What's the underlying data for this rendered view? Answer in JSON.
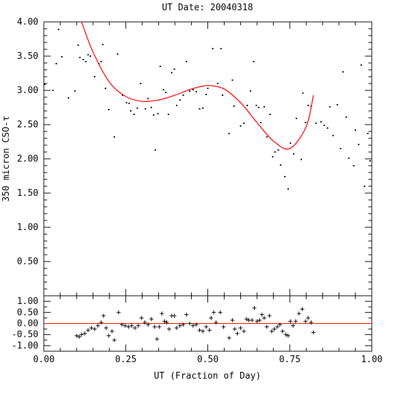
{
  "chart_data": [
    {
      "type": "scatter",
      "title": "UT Date: 20040318",
      "xlabel": "",
      "ylabel": "350 micron CSO-τ",
      "xlim": [
        0,
        1
      ],
      "ylim": [
        0,
        4
      ],
      "x_ticks": [
        0,
        0.25,
        0.5,
        0.75,
        1
      ],
      "y_ticks": [
        0.5,
        1,
        1.5,
        2,
        2.5,
        3,
        3.5,
        4
      ],
      "y_tick_labels": [
        "0.50",
        "1.00",
        "1.50",
        "2.00",
        "2.50",
        "3.00",
        "3.50",
        "4.00"
      ],
      "grid": false,
      "series": [
        {
          "color": "#000000",
          "marker": "dot",
          "points": [
            [
              0.003,
              3.09
            ],
            [
              0.028,
              3.0
            ],
            [
              0.038,
              3.39
            ],
            [
              0.045,
              3.89
            ],
            [
              0.055,
              3.49
            ],
            [
              0.075,
              2.89
            ],
            [
              0.095,
              2.99
            ],
            [
              0.105,
              3.66
            ],
            [
              0.11,
              3.48
            ],
            [
              0.12,
              3.45
            ],
            [
              0.128,
              3.42
            ],
            [
              0.135,
              3.52
            ],
            [
              0.142,
              3.5
            ],
            [
              0.155,
              3.2
            ],
            [
              0.168,
              3.39
            ],
            [
              0.175,
              3.42
            ],
            [
              0.18,
              3.67
            ],
            [
              0.188,
              3.03
            ],
            [
              0.198,
              2.72
            ],
            [
              0.215,
              2.32
            ],
            [
              0.225,
              3.53
            ],
            [
              0.24,
              2.93
            ],
            [
              0.252,
              2.82
            ],
            [
              0.26,
              2.81
            ],
            [
              0.265,
              2.7
            ],
            [
              0.275,
              2.65
            ],
            [
              0.285,
              2.74
            ],
            [
              0.295,
              3.1
            ],
            [
              0.31,
              2.73
            ],
            [
              0.318,
              2.88
            ],
            [
              0.328,
              2.75
            ],
            [
              0.335,
              2.64
            ],
            [
              0.34,
              2.13
            ],
            [
              0.348,
              2.66
            ],
            [
              0.355,
              3.35
            ],
            [
              0.365,
              3.01
            ],
            [
              0.372,
              2.97
            ],
            [
              0.38,
              2.65
            ],
            [
              0.39,
              3.26
            ],
            [
              0.398,
              3.31
            ],
            [
              0.405,
              2.78
            ],
            [
              0.415,
              2.86
            ],
            [
              0.425,
              2.93
            ],
            [
              0.435,
              3.42
            ],
            [
              0.445,
              2.99
            ],
            [
              0.455,
              3.01
            ],
            [
              0.465,
              2.98
            ],
            [
              0.475,
              2.73
            ],
            [
              0.485,
              2.74
            ],
            [
              0.495,
              2.94
            ],
            [
              0.5,
              3.03
            ],
            [
              0.515,
              3.61
            ],
            [
              0.53,
              3.1
            ],
            [
              0.54,
              3.61
            ],
            [
              0.545,
              2.93
            ],
            [
              0.565,
              2.37
            ],
            [
              0.575,
              3.15
            ],
            [
              0.58,
              2.77
            ],
            [
              0.6,
              2.48
            ],
            [
              0.61,
              2.52
            ],
            [
              0.62,
              2.78
            ],
            [
              0.63,
              2.99
            ],
            [
              0.64,
              3.42
            ],
            [
              0.648,
              2.78
            ],
            [
              0.655,
              2.75
            ],
            [
              0.662,
              2.53
            ],
            [
              0.672,
              2.76
            ],
            [
              0.68,
              2.32
            ],
            [
              0.69,
              2.65
            ],
            [
              0.698,
              2.03
            ],
            [
              0.705,
              2.1
            ],
            [
              0.715,
              2.13
            ],
            [
              0.722,
              1.91
            ],
            [
              0.735,
              1.74
            ],
            [
              0.745,
              1.56
            ],
            [
              0.752,
              2.23
            ],
            [
              0.762,
              2.07
            ],
            [
              0.77,
              2.59
            ],
            [
              0.785,
              1.99
            ],
            [
              0.79,
              2.96
            ],
            [
              0.798,
              2.53
            ],
            [
              0.806,
              2.78
            ],
            [
              0.815,
              2.77
            ],
            [
              0.83,
              2.52
            ],
            [
              0.845,
              2.54
            ],
            [
              0.855,
              2.49
            ],
            [
              0.865,
              2.45
            ],
            [
              0.872,
              2.76
            ],
            [
              0.882,
              2.34
            ],
            [
              0.895,
              2.79
            ],
            [
              0.905,
              2.15
            ],
            [
              0.912,
              3.27
            ],
            [
              0.922,
              2.61
            ],
            [
              0.93,
              2.01
            ],
            [
              0.945,
              1.9
            ],
            [
              0.95,
              2.42
            ],
            [
              0.96,
              2.21
            ],
            [
              0.968,
              3.37
            ],
            [
              0.978,
              1.6
            ],
            [
              0.988,
              2.37
            ],
            [
              0.995,
              1.97
            ]
          ]
        },
        {
          "color": "#ff0000",
          "marker": "none",
          "fit_x_range": [
            0.115,
            0.822
          ],
          "fit_points": [
            [
              0.115,
              4.0
            ],
            [
              0.15,
              3.56
            ],
            [
              0.2,
              3.12
            ],
            [
              0.25,
              2.91
            ],
            [
              0.3,
              2.84
            ],
            [
              0.35,
              2.86
            ],
            [
              0.4,
              2.93
            ],
            [
              0.45,
              3.02
            ],
            [
              0.5,
              3.07
            ],
            [
              0.55,
              3.02
            ],
            [
              0.6,
              2.82
            ],
            [
              0.65,
              2.53
            ],
            [
              0.7,
              2.26
            ],
            [
              0.75,
              2.15
            ],
            [
              0.8,
              2.47
            ],
            [
              0.822,
              2.93
            ]
          ]
        }
      ]
    },
    {
      "type": "scatter",
      "title": "",
      "xlabel": "UT (Fraction of Day)",
      "ylabel": "",
      "xlim": [
        0,
        1
      ],
      "ylim": [
        -1.25,
        1.25
      ],
      "x_ticks": [
        0,
        0.25,
        0.5,
        0.75,
        1
      ],
      "x_tick_labels": [
        "0.00",
        "0.25",
        "0.50",
        "0.75",
        "1.00"
      ],
      "y_ticks": [
        -1,
        -0.5,
        0,
        0.5,
        1
      ],
      "y_tick_labels": [
        "-1.00",
        "-0.50",
        "0.00",
        "0.50",
        "1.00"
      ],
      "grid": false,
      "zero_line_color": "#ff0000",
      "series": [
        {
          "color": "#000000",
          "marker": "plus",
          "points": [
            [
              0.1,
              -0.55
            ],
            [
              0.108,
              -0.6
            ],
            [
              0.115,
              -0.5
            ],
            [
              0.125,
              -0.45
            ],
            [
              0.135,
              -0.3
            ],
            [
              0.145,
              -0.2
            ],
            [
              0.155,
              -0.25
            ],
            [
              0.165,
              -0.1
            ],
            [
              0.175,
              0.05
            ],
            [
              0.182,
              0.35
            ],
            [
              0.19,
              -0.2
            ],
            [
              0.198,
              -0.55
            ],
            [
              0.208,
              -0.35
            ],
            [
              0.215,
              -0.75
            ],
            [
              0.228,
              0.5
            ],
            [
              0.238,
              -0.05
            ],
            [
              0.248,
              -0.1
            ],
            [
              0.258,
              -0.15
            ],
            [
              0.268,
              -0.1
            ],
            [
              0.278,
              -0.2
            ],
            [
              0.288,
              -0.1
            ],
            [
              0.298,
              0.25
            ],
            [
              0.308,
              0.05
            ],
            [
              0.318,
              -0.05
            ],
            [
              0.328,
              0.2
            ],
            [
              0.338,
              -0.15
            ],
            [
              0.345,
              -0.7
            ],
            [
              0.352,
              -0.15
            ],
            [
              0.36,
              0.45
            ],
            [
              0.368,
              0.1
            ],
            [
              0.375,
              0.05
            ],
            [
              0.382,
              -0.25
            ],
            [
              0.39,
              0.35
            ],
            [
              0.398,
              0.35
            ],
            [
              0.405,
              -0.2
            ],
            [
              0.415,
              -0.1
            ],
            [
              0.425,
              -0.05
            ],
            [
              0.435,
              0.4
            ],
            [
              0.445,
              0.0
            ],
            [
              0.455,
              -0.1
            ],
            [
              0.465,
              -0.05
            ],
            [
              0.475,
              -0.3
            ],
            [
              0.485,
              -0.35
            ],
            [
              0.495,
              -0.15
            ],
            [
              0.505,
              -0.3
            ],
            [
              0.51,
              0.25
            ],
            [
              0.518,
              0.5
            ],
            [
              0.525,
              0.05
            ],
            [
              0.538,
              0.5
            ],
            [
              0.548,
              -0.15
            ],
            [
              0.565,
              -0.65
            ],
            [
              0.575,
              0.15
            ],
            [
              0.582,
              -0.25
            ],
            [
              0.59,
              -0.45
            ],
            [
              0.6,
              -0.2
            ],
            [
              0.61,
              -0.35
            ],
            [
              0.618,
              0.2
            ],
            [
              0.625,
              0.15
            ],
            [
              0.635,
              0.15
            ],
            [
              0.642,
              0.7
            ],
            [
              0.65,
              0.1
            ],
            [
              0.658,
              0.15
            ],
            [
              0.665,
              0.4
            ],
            [
              0.672,
              0.25
            ],
            [
              0.68,
              -0.15
            ],
            [
              0.688,
              0.35
            ],
            [
              0.695,
              -0.35
            ],
            [
              0.703,
              -0.25
            ],
            [
              0.712,
              -0.15
            ],
            [
              0.72,
              -0.05
            ],
            [
              0.728,
              -0.35
            ],
            [
              0.738,
              -0.5
            ],
            [
              0.745,
              -0.55
            ],
            [
              0.752,
              0.1
            ],
            [
              0.76,
              -0.1
            ],
            [
              0.768,
              0.1
            ],
            [
              0.778,
              0.45
            ],
            [
              0.788,
              0.65
            ],
            [
              0.798,
              0.1
            ],
            [
              0.806,
              0.25
            ],
            [
              0.815,
              0.05
            ],
            [
              0.822,
              -0.4
            ]
          ]
        }
      ]
    }
  ]
}
